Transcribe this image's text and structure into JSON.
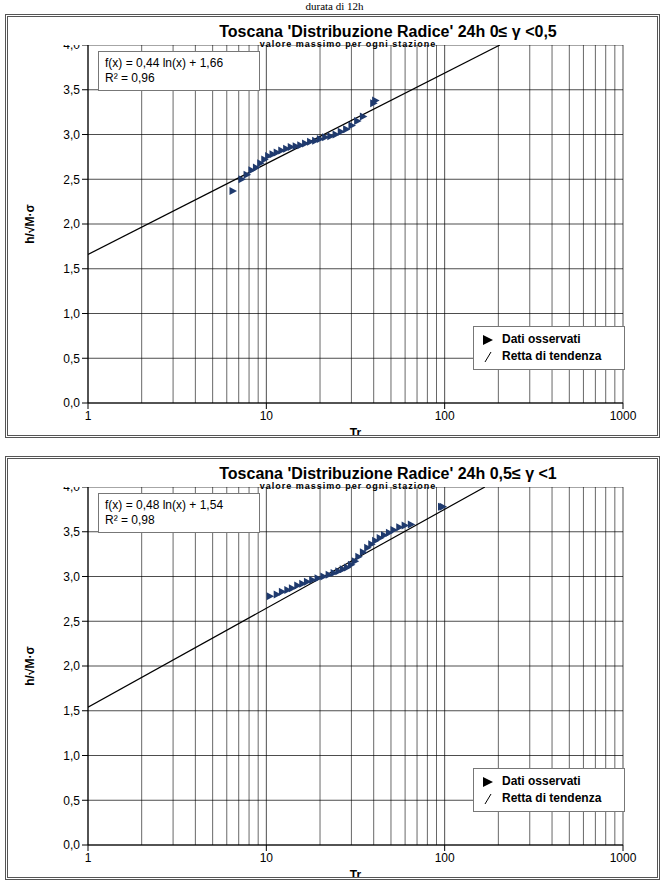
{
  "caption": "durata di 12h",
  "chart_data": [
    {
      "type": "scatter",
      "title": "Toscana 'Distribuzione Radice' 24h 0≤ γ <0,5",
      "subtitle": "valore massimo per ogni stazione",
      "x_label": "Tr",
      "y_label": "h/√M·σ",
      "log": "x",
      "grid": true,
      "legend": "lower right",
      "annotations": [
        "f(x) = 0,44 ln(x) + 1,66",
        "R² = 0,96"
      ],
      "xlim": [
        1,
        1000
      ],
      "xticks": [
        1,
        10,
        100,
        1000
      ],
      "ylim": [
        0,
        4
      ],
      "yticks": [
        {
          "value": 0,
          "label": "0,0"
        },
        {
          "value": 0.5,
          "label": "0,5"
        },
        {
          "value": 1,
          "label": "1,0"
        },
        {
          "value": 1.5,
          "label": "1,5"
        },
        {
          "value": 2,
          "label": "2,0"
        },
        {
          "value": 2.5,
          "label": "2,5"
        },
        {
          "value": 3,
          "label": "3,0"
        },
        {
          "value": 3.5,
          "label": "3,5"
        },
        {
          "value": 4,
          "label": "4,0"
        }
      ],
      "series": [
        {
          "name": "Dati osservati",
          "type": "scatter",
          "color": "#1F3A6E",
          "marker": "triangle-right",
          "x": [
            6.5,
            7.3,
            7.8,
            8.3,
            8.8,
            9.3,
            9.8,
            10.3,
            10.9,
            11.5,
            12.2,
            13,
            13.8,
            14.7,
            15.6,
            16.6,
            17.7,
            18.9,
            20.1,
            21.5,
            23,
            24.6,
            26.3,
            28.2,
            30.2,
            32.5,
            35,
            40,
            41
          ],
          "values": [
            2.37,
            2.5,
            2.55,
            2.6,
            2.63,
            2.68,
            2.72,
            2.76,
            2.78,
            2.8,
            2.82,
            2.84,
            2.86,
            2.87,
            2.88,
            2.9,
            2.92,
            2.93,
            2.95,
            2.97,
            2.98,
            3.0,
            3.03,
            3.06,
            3.1,
            3.15,
            3.2,
            3.35,
            3.38
          ]
        },
        {
          "name": "Retta di tendenza",
          "type": "line",
          "color": "#000000",
          "line_style": "solid",
          "x": [
            1,
            204
          ],
          "values": [
            1.66,
            4.0
          ]
        }
      ]
    },
    {
      "type": "scatter",
      "title": "Toscana 'Distribuzione Radice' 24h 0,5≤ γ <1",
      "subtitle": "valore massimo per ogni stazione",
      "x_label": "Tr",
      "y_label": "h/√M·σ",
      "log": "x",
      "grid": true,
      "legend": "lower right",
      "annotations": [
        "f(x) = 0,48 ln(x) + 1,54",
        "R² = 0,98"
      ],
      "xlim": [
        1,
        1000
      ],
      "xticks": [
        1,
        10,
        100,
        1000
      ],
      "ylim": [
        0,
        4
      ],
      "yticks": [
        {
          "value": 0,
          "label": "0,0"
        },
        {
          "value": 0.5,
          "label": "0,5"
        },
        {
          "value": 1,
          "label": "1,0"
        },
        {
          "value": 1.5,
          "label": "1,5"
        },
        {
          "value": 2,
          "label": "2,0"
        },
        {
          "value": 2.5,
          "label": "2,5"
        },
        {
          "value": 3,
          "label": "3,0"
        },
        {
          "value": 3.5,
          "label": "3,5"
        },
        {
          "value": 4,
          "label": "4,0"
        }
      ],
      "series": [
        {
          "name": "Dati osservati",
          "type": "scatter",
          "color": "#1F3A6E",
          "marker": "triangle-right",
          "x": [
            10.5,
            11.5,
            12.3,
            13.2,
            14,
            15,
            16,
            17,
            18.2,
            19.5,
            21,
            22.5,
            24,
            25.5,
            27,
            28.5,
            30,
            31.5,
            33,
            35,
            37,
            39,
            41,
            43.5,
            46,
            49,
            52,
            56,
            60,
            65,
            96,
            98
          ],
          "values": [
            2.78,
            2.8,
            2.83,
            2.85,
            2.87,
            2.9,
            2.92,
            2.94,
            2.96,
            2.98,
            3.0,
            3.02,
            3.04,
            3.06,
            3.08,
            3.1,
            3.13,
            3.17,
            3.22,
            3.27,
            3.32,
            3.36,
            3.4,
            3.43,
            3.46,
            3.49,
            3.52,
            3.55,
            3.57,
            3.58,
            3.78,
            3.78
          ]
        },
        {
          "name": "Retta di tendenza",
          "type": "line",
          "color": "#000000",
          "line_style": "solid",
          "x": [
            1,
            168
          ],
          "values": [
            1.54,
            4.0
          ]
        }
      ]
    }
  ]
}
